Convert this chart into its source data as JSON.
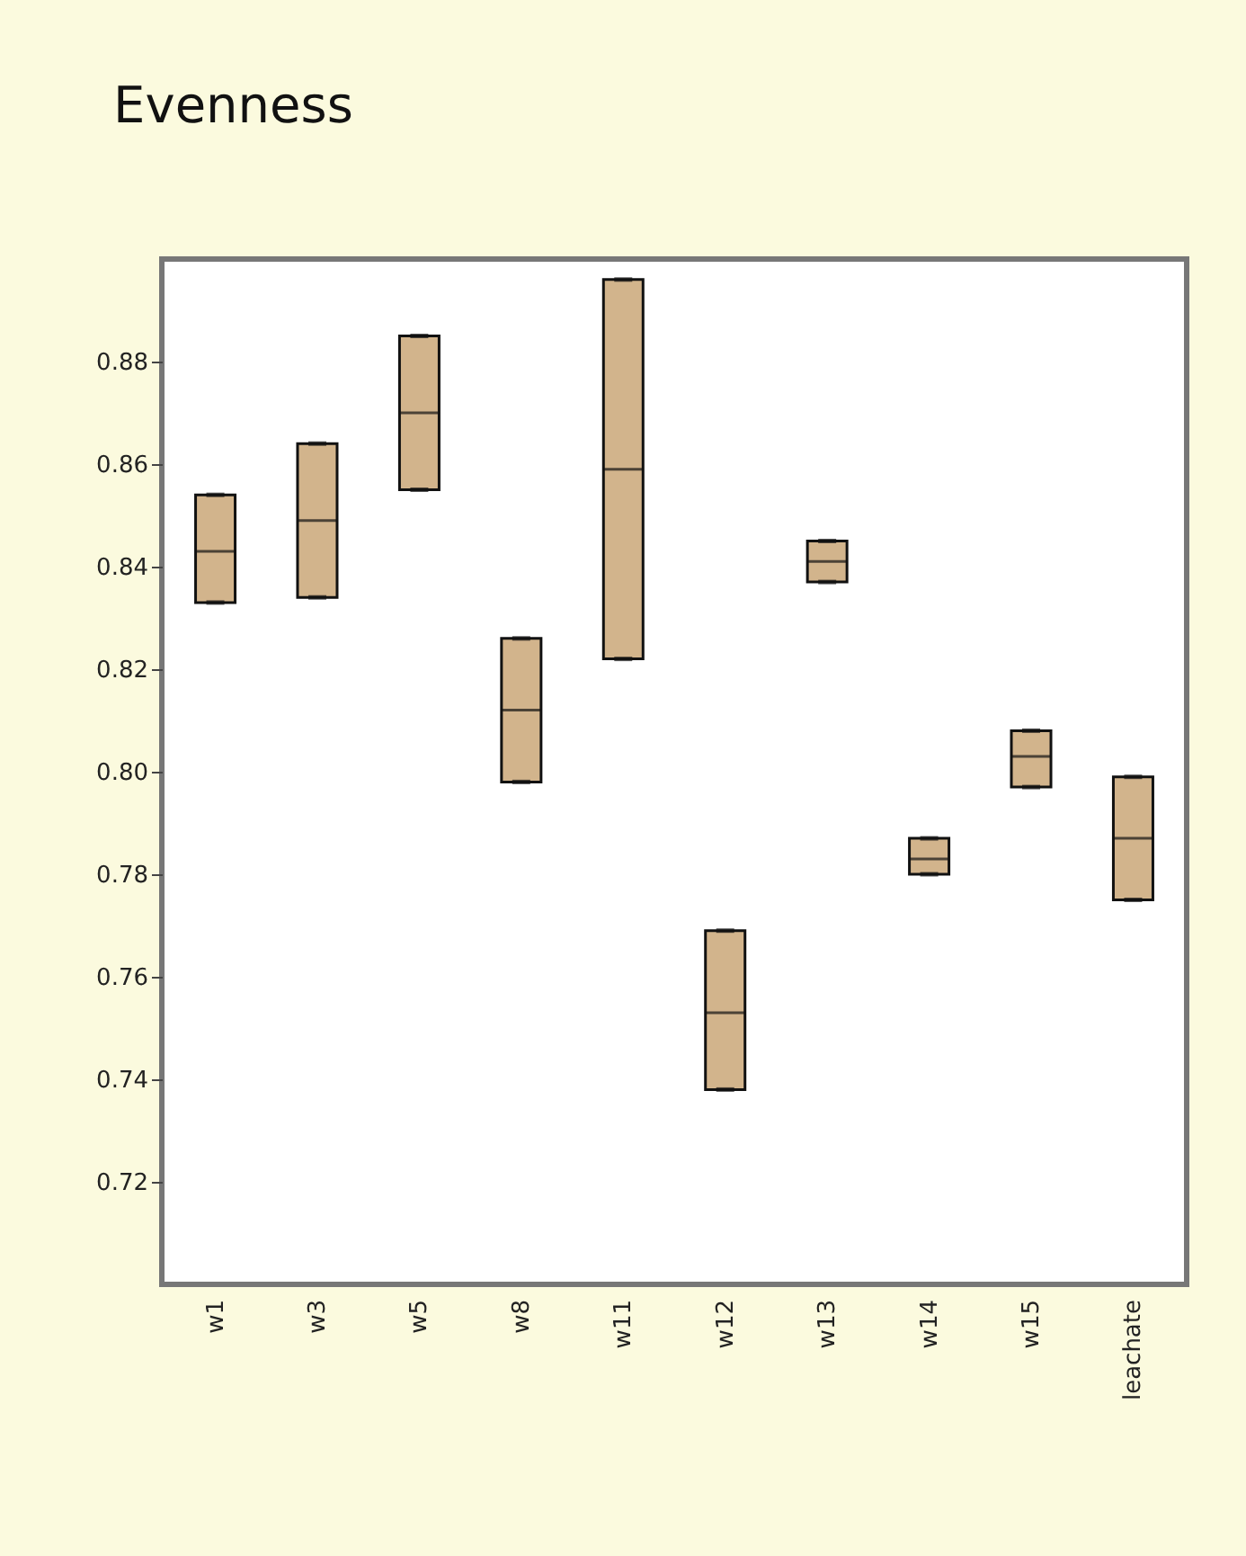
{
  "chart_data": {
    "type": "box",
    "title": "Evenness",
    "categories": [
      "w1",
      "w3",
      "w5",
      "w8",
      "w11",
      "w12",
      "w13",
      "w14",
      "w15",
      "leachate"
    ],
    "boxes": [
      {
        "low": 0.833,
        "q1": 0.833,
        "median": 0.843,
        "q3": 0.854,
        "high": 0.854
      },
      {
        "low": 0.834,
        "q1": 0.834,
        "median": 0.849,
        "q3": 0.864,
        "high": 0.864
      },
      {
        "low": 0.855,
        "q1": 0.855,
        "median": 0.87,
        "q3": 0.885,
        "high": 0.885
      },
      {
        "low": 0.798,
        "q1": 0.798,
        "median": 0.812,
        "q3": 0.826,
        "high": 0.826
      },
      {
        "low": 0.822,
        "q1": 0.822,
        "median": 0.859,
        "q3": 0.896,
        "high": 0.896
      },
      {
        "low": 0.738,
        "q1": 0.738,
        "median": 0.753,
        "q3": 0.769,
        "high": 0.769
      },
      {
        "low": 0.837,
        "q1": 0.837,
        "median": 0.841,
        "q3": 0.845,
        "high": 0.845
      },
      {
        "low": 0.78,
        "q1": 0.78,
        "median": 0.783,
        "q3": 0.787,
        "high": 0.787
      },
      {
        "low": 0.797,
        "q1": 0.797,
        "median": 0.803,
        "q3": 0.808,
        "high": 0.808
      },
      {
        "low": 0.775,
        "q1": 0.775,
        "median": 0.787,
        "q3": 0.799,
        "high": 0.799
      }
    ],
    "color": "#d2b48c",
    "ylim": [
      0.7,
      0.9
    ],
    "yticks": [
      {
        "value": 0.72,
        "label": "0.72"
      },
      {
        "value": 0.74,
        "label": "0.74"
      },
      {
        "value": 0.76,
        "label": "0.76"
      },
      {
        "value": 0.78,
        "label": "0.78"
      },
      {
        "value": 0.8,
        "label": "0.80"
      },
      {
        "value": 0.82,
        "label": "0.82"
      },
      {
        "value": 0.84,
        "label": "0.84"
      },
      {
        "value": 0.86,
        "label": "0.86"
      },
      {
        "value": 0.88,
        "label": "0.88"
      }
    ],
    "grid": false
  }
}
